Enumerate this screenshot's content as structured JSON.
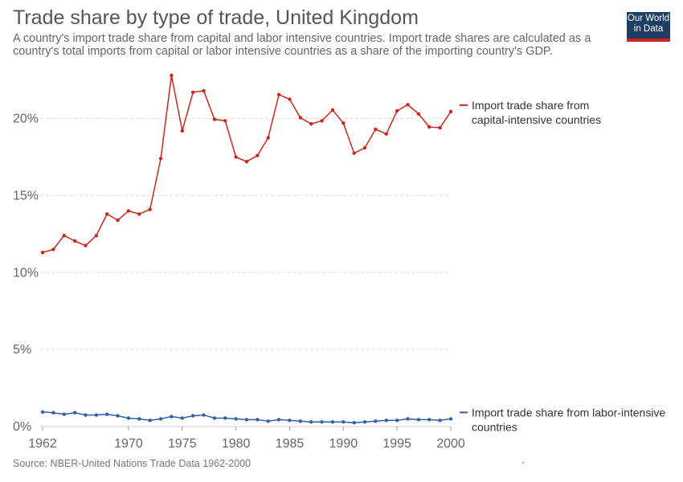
{
  "header": {
    "title": "Trade share by type of trade, United Kingdom",
    "subtitle": "A country's import trade share from capital and labor intensive countries. Import trade shares are calculated as a country's total imports from capital or labor intensive countries as a share of the importing country's GDP."
  },
  "logo": {
    "line1": "Our World",
    "line2": "in Data"
  },
  "footer": {
    "source": "Source: NBER-United Nations Trade Data 1962-2000"
  },
  "chart_data": {
    "type": "line",
    "title": "Trade share by type of trade, United Kingdom",
    "xlabel": "",
    "ylabel": "",
    "x": [
      1962,
      1963,
      1964,
      1965,
      1966,
      1967,
      1968,
      1969,
      1970,
      1971,
      1972,
      1973,
      1974,
      1975,
      1976,
      1977,
      1978,
      1979,
      1980,
      1981,
      1982,
      1983,
      1984,
      1985,
      1986,
      1987,
      1988,
      1989,
      1990,
      1991,
      1992,
      1993,
      1994,
      1995,
      1996,
      1997,
      1998,
      1999,
      2000
    ],
    "xlim": [
      1962,
      2000
    ],
    "x_ticks": [
      1962,
      1970,
      1975,
      1980,
      1985,
      1990,
      1995,
      2000
    ],
    "ylim": [
      0,
      23
    ],
    "y_ticks": [
      0,
      5,
      10,
      15,
      20
    ],
    "y_tick_labels": [
      "0%",
      "5%",
      "10%",
      "15%",
      "20%"
    ],
    "grid": "horizontal-dashed",
    "legend_placement": "right, labels at line ends",
    "series": [
      {
        "name": "Import trade share from capital-intensive countries",
        "label_lines": [
          "Import trade share from",
          "capital-intensive countries"
        ],
        "color": "#ce261e",
        "values": [
          11.3,
          11.5,
          12.4,
          12.05,
          11.75,
          12.4,
          13.8,
          13.4,
          14.0,
          13.8,
          14.1,
          17.4,
          22.8,
          19.2,
          21.7,
          21.8,
          19.95,
          19.85,
          17.5,
          17.2,
          17.6,
          18.75,
          21.55,
          21.25,
          20.05,
          19.65,
          19.85,
          20.55,
          19.7,
          17.75,
          18.1,
          19.3,
          19.0,
          20.5,
          20.9,
          20.3,
          19.45,
          19.4,
          20.45
        ]
      },
      {
        "name": "Import trade share from labor-intensive countries",
        "label_lines": [
          "Import trade share from labor-intensive",
          "countries"
        ],
        "color": "#3360a9",
        "values": [
          0.95,
          0.9,
          0.8,
          0.9,
          0.75,
          0.75,
          0.8,
          0.7,
          0.55,
          0.5,
          0.4,
          0.5,
          0.65,
          0.55,
          0.7,
          0.75,
          0.55,
          0.55,
          0.5,
          0.45,
          0.45,
          0.35,
          0.45,
          0.4,
          0.35,
          0.3,
          0.3,
          0.3,
          0.3,
          0.25,
          0.3,
          0.35,
          0.4,
          0.4,
          0.5,
          0.45,
          0.45,
          0.4,
          0.5
        ]
      }
    ]
  }
}
